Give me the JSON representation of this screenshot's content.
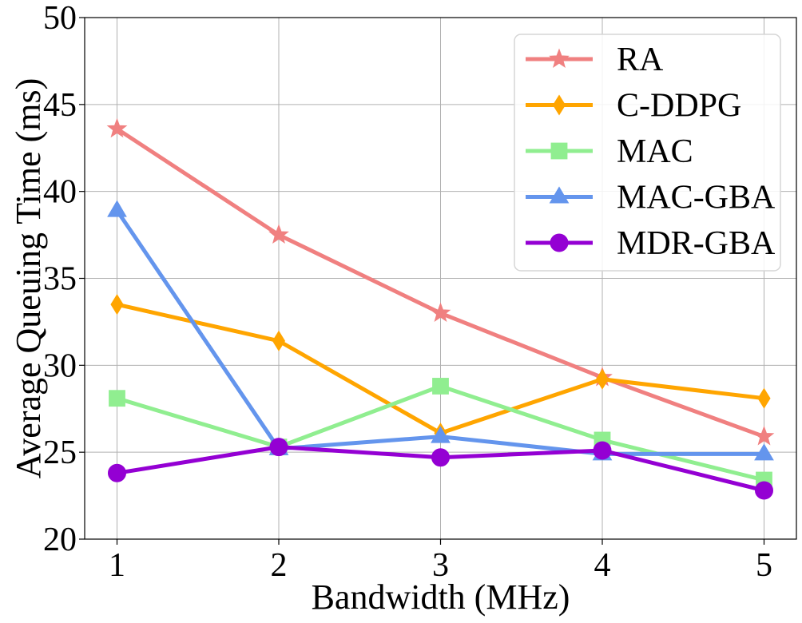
{
  "chart_data": {
    "type": "line",
    "title": "",
    "xlabel": "Bandwidth (MHz)",
    "ylabel": "Average Queuing Time (ms)",
    "x": [
      1,
      2,
      3,
      4,
      5
    ],
    "x_ticks": [
      "1",
      "2",
      "3",
      "4",
      "5"
    ],
    "y_ticks": [
      "20",
      "25",
      "30",
      "35",
      "40",
      "45",
      "50"
    ],
    "xlim": [
      0.8,
      5.2
    ],
    "ylim": [
      20,
      50
    ],
    "grid": true,
    "legend_position": "top-right",
    "series": [
      {
        "name": "RA",
        "color": "#f08080",
        "marker": "star",
        "values": [
          43.6,
          37.5,
          33.0,
          29.3,
          25.9
        ]
      },
      {
        "name": "C-DDPG",
        "color": "#ffa500",
        "marker": "diamond",
        "values": [
          33.5,
          31.4,
          26.1,
          29.2,
          28.1
        ]
      },
      {
        "name": "MAC",
        "color": "#90ee90",
        "marker": "square",
        "values": [
          28.1,
          25.3,
          28.8,
          25.7,
          23.4
        ]
      },
      {
        "name": "MAC-GBA",
        "color": "#6495ed",
        "marker": "triangle",
        "values": [
          38.9,
          25.2,
          25.9,
          24.9,
          24.9
        ]
      },
      {
        "name": "MDR-GBA",
        "color": "#9400d3",
        "marker": "circle",
        "values": [
          23.8,
          25.3,
          24.7,
          25.1,
          22.8
        ]
      }
    ]
  }
}
